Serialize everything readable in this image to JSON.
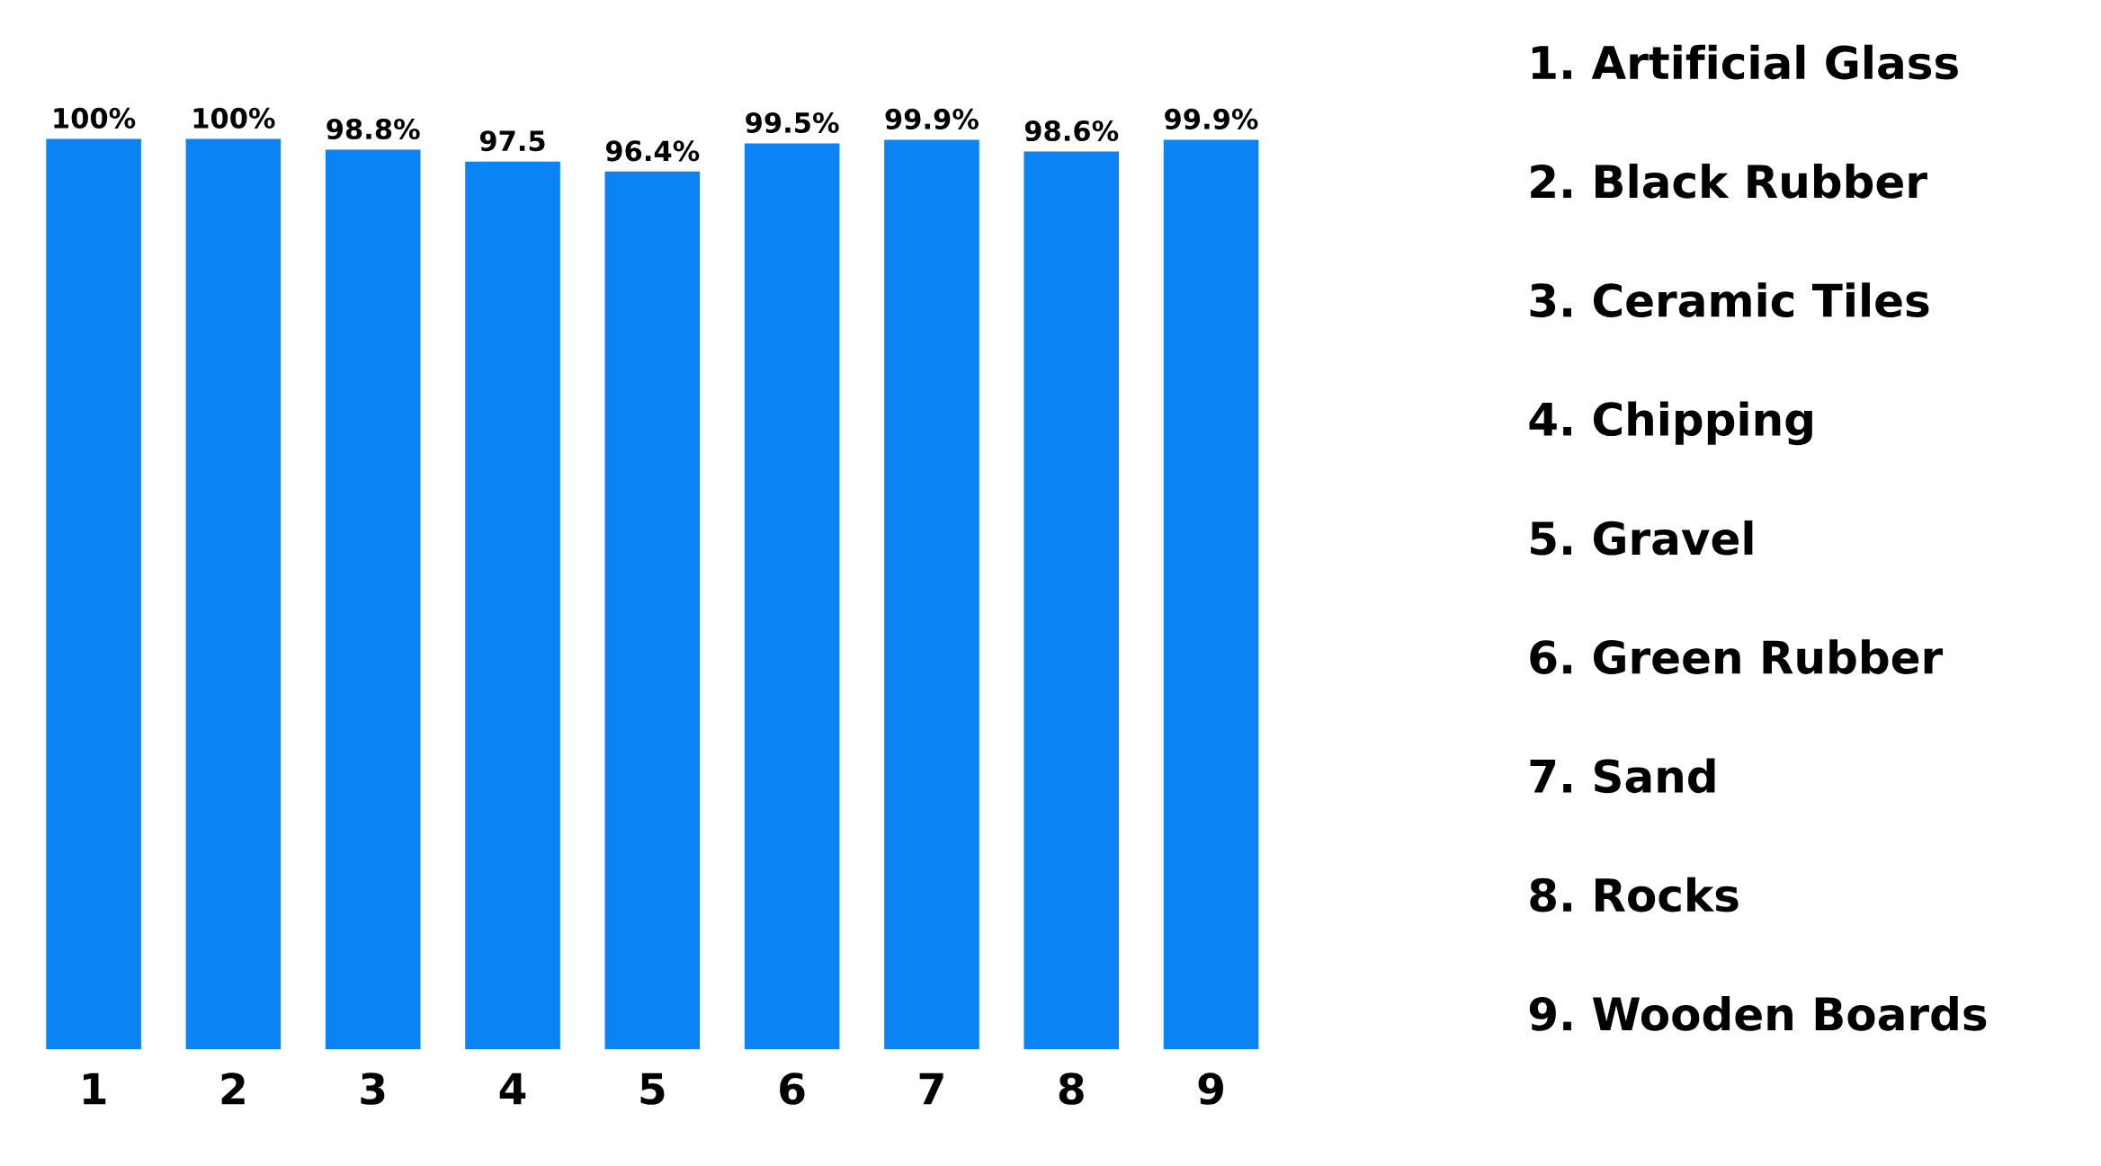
{
  "chart_data": {
    "type": "bar",
    "categories": [
      "1",
      "2",
      "3",
      "4",
      "5",
      "6",
      "7",
      "8",
      "9"
    ],
    "values": [
      100,
      100,
      98.8,
      97.5,
      96.4,
      99.5,
      99.9,
      98.6,
      99.9
    ],
    "value_labels": [
      "100%",
      "100%",
      "98.8%",
      "97.5",
      "96.4%",
      "99.5%",
      "99.9%",
      "98.6%",
      "99.9%"
    ],
    "color": "#0a84f5",
    "annotations": [
      "1. Artificial Glass",
      "2. Black Rubber",
      "3. Ceramic Tiles",
      "4. Chipping",
      "5. Gravel",
      "6. Green Rubber",
      "7. Sand",
      "8. Rocks",
      "9. Wooden Boards"
    ],
    "grid": false,
    "legend": false
  }
}
